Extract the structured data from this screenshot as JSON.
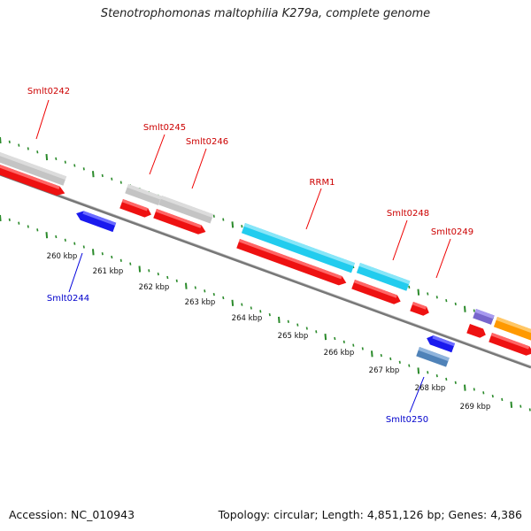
{
  "title": "Stenotrophomonas maltophilia K279a, complete genome",
  "footer": {
    "accession": "Accession: NC_010943",
    "summary": "Topology: circular; Length: 4,851,126 bp; Genes: 4,386"
  },
  "colors": {
    "backbone": "#777777",
    "forward_cds": "#ee1111",
    "reverse_cds": "#1a1aee",
    "gene_grey": "#c4c4c4",
    "gene_cyan": "#22ccee",
    "gene_steel": "#4f82b8",
    "gene_purple": "#7766cc",
    "gene_orange": "#ff9900",
    "gc_skew_dots": "#2a8a2a",
    "label_forward": "#cc0000",
    "label_reverse": "#0000cc"
  },
  "gene_labels": [
    {
      "name": "Smlt0242",
      "strand": "forward"
    },
    {
      "name": "Smlt0245",
      "strand": "forward"
    },
    {
      "name": "Smlt0246",
      "strand": "forward"
    },
    {
      "name": "RRM1",
      "strand": "forward"
    },
    {
      "name": "Smlt0248",
      "strand": "forward"
    },
    {
      "name": "Smlt0249",
      "strand": "forward"
    },
    {
      "name": "Smlt0244",
      "strand": "reverse"
    },
    {
      "name": "Smlt0250",
      "strand": "reverse"
    }
  ],
  "ruler_ticks": [
    "260 kbp",
    "261 kbp",
    "262 kbp",
    "263 kbp",
    "264 kbp",
    "265 kbp",
    "266 kbp",
    "267 kbp",
    "268 kbp",
    "269 kbp"
  ]
}
